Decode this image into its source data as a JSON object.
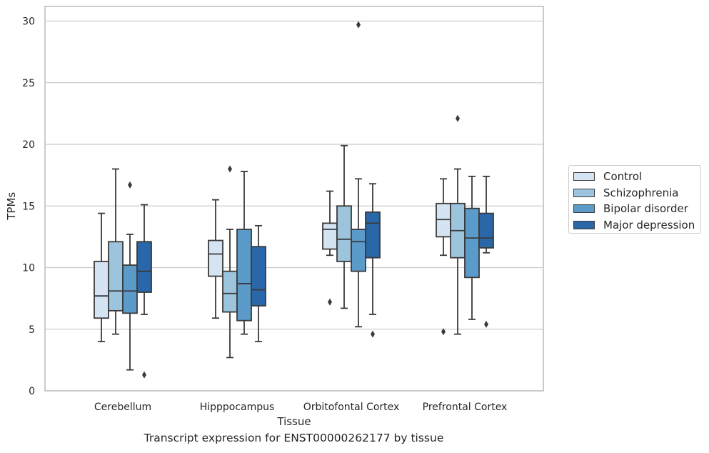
{
  "chart_data": {
    "type": "box",
    "xlabel": "Tissue",
    "ylabel": "TPMs",
    "caption": "Transcript expression for ENST00000262177 by tissue",
    "ylim": [
      0,
      31.2
    ],
    "yticks": [
      0,
      5,
      10,
      15,
      20,
      25,
      30
    ],
    "grid": "horizontal",
    "legend_position": "right",
    "categories": [
      "Cerebellum",
      "Hipppocampus",
      "Orbitofontal Cortex",
      "Prefrontal Cortex"
    ],
    "series": [
      {
        "name": "Control",
        "color": "#d5e4f3",
        "boxes": [
          {
            "whisker_low": 4.0,
            "q1": 5.9,
            "median": 7.7,
            "q3": 10.5,
            "whisker_high": 14.4,
            "outliers": []
          },
          {
            "whisker_low": 5.9,
            "q1": 9.3,
            "median": 11.1,
            "q3": 12.2,
            "whisker_high": 15.5,
            "outliers": []
          },
          {
            "whisker_low": 11.0,
            "q1": 11.5,
            "median": 13.1,
            "q3": 13.6,
            "whisker_high": 16.2,
            "outliers": [
              7.2
            ]
          },
          {
            "whisker_low": 11.0,
            "q1": 12.5,
            "median": 13.9,
            "q3": 15.2,
            "whisker_high": 17.2,
            "outliers": [
              4.8
            ]
          }
        ]
      },
      {
        "name": "Schizophrenia",
        "color": "#9dc4dd",
        "boxes": [
          {
            "whisker_low": 4.6,
            "q1": 6.5,
            "median": 8.1,
            "q3": 12.1,
            "whisker_high": 18.0,
            "outliers": []
          },
          {
            "whisker_low": 2.7,
            "q1": 6.4,
            "median": 7.9,
            "q3": 9.7,
            "whisker_high": 13.1,
            "outliers": [
              18.0
            ]
          },
          {
            "whisker_low": 6.7,
            "q1": 10.5,
            "median": 12.3,
            "q3": 15.0,
            "whisker_high": 19.9,
            "outliers": []
          },
          {
            "whisker_low": 4.6,
            "q1": 10.8,
            "median": 13.0,
            "q3": 15.2,
            "whisker_high": 18.0,
            "outliers": [
              22.1
            ]
          }
        ]
      },
      {
        "name": "Bipolar disorder",
        "color": "#5b9bc9",
        "boxes": [
          {
            "whisker_low": 1.7,
            "q1": 6.3,
            "median": 8.1,
            "q3": 10.2,
            "whisker_high": 12.7,
            "outliers": [
              16.7
            ]
          },
          {
            "whisker_low": 4.6,
            "q1": 5.7,
            "median": 8.7,
            "q3": 13.1,
            "whisker_high": 17.8,
            "outliers": []
          },
          {
            "whisker_low": 5.2,
            "q1": 9.7,
            "median": 12.1,
            "q3": 13.1,
            "whisker_high": 17.2,
            "outliers": [
              29.7
            ]
          },
          {
            "whisker_low": 5.8,
            "q1": 9.2,
            "median": 12.4,
            "q3": 14.8,
            "whisker_high": 17.4,
            "outliers": []
          }
        ]
      },
      {
        "name": "Major depression",
        "color": "#2a67a8",
        "boxes": [
          {
            "whisker_low": 6.2,
            "q1": 8.0,
            "median": 9.7,
            "q3": 12.1,
            "whisker_high": 15.1,
            "outliers": [
              1.3
            ]
          },
          {
            "whisker_low": 4.0,
            "q1": 6.9,
            "median": 8.2,
            "q3": 11.7,
            "whisker_high": 13.4,
            "outliers": []
          },
          {
            "whisker_low": 6.2,
            "q1": 10.8,
            "median": 13.6,
            "q3": 14.5,
            "whisker_high": 16.8,
            "outliers": [
              4.6
            ]
          },
          {
            "whisker_low": 11.2,
            "q1": 11.6,
            "median": 12.4,
            "q3": 14.4,
            "whisker_high": 17.4,
            "outliers": [
              5.4
            ]
          }
        ]
      }
    ]
  }
}
